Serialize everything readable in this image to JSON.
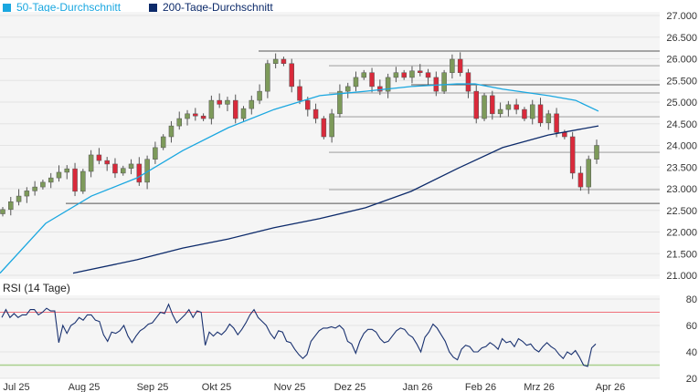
{
  "chart_data": {
    "type": "candlestick",
    "legend": [
      {
        "label": "50-Tage-Durchschnitt",
        "color": "#1aa7e0"
      },
      {
        "label": "200-Tage-Durchschnitt",
        "color": "#0c2a6a"
      }
    ],
    "y_ticks": [
      "27.000",
      "26.500",
      "26.000",
      "25.500",
      "25.000",
      "24.500",
      "24.000",
      "23.500",
      "23.000",
      "22.500",
      "22.000",
      "21.500",
      "21.000"
    ],
    "ylim": [
      21000,
      27000
    ],
    "x_ticks": [
      "Jul 25",
      "Aug 25",
      "Sep 25",
      "Okt 25",
      "Nov 25",
      "Dez 25",
      "Jan 26",
      "Feb 26",
      "Mrz 26",
      "Apr 26"
    ],
    "closes": [
      22520,
      22700,
      22830,
      22950,
      23040,
      23150,
      23250,
      23380,
      23460,
      22940,
      23400,
      23780,
      23650,
      23570,
      23360,
      23470,
      23570,
      23150,
      23680,
      23950,
      24200,
      24450,
      24620,
      24730,
      24680,
      24620,
      25040,
      24950,
      25040,
      24620,
      24850,
      25040,
      25250,
      25890,
      25990,
      25890,
      25360,
      25040,
      24830,
      24620,
      24200,
      24730,
      25250,
      25360,
      25570,
      25680,
      25360,
      25250,
      25570,
      25680,
      25570,
      25720,
      25680,
      25570,
      25250,
      25680,
      25990,
      25680,
      25250,
      24620,
      25150,
      24730,
      24830,
      24940,
      24830,
      24620,
      24940,
      24520,
      24730,
      24300,
      24200,
      23360,
      23040,
      23680,
      24000
    ],
    "ma50": [
      [
        0,
        21050
      ],
      [
        50,
        22200
      ],
      [
        100,
        22830
      ],
      [
        150,
        23250
      ],
      [
        200,
        23880
      ],
      [
        250,
        24410
      ],
      [
        300,
        24830
      ],
      [
        350,
        25150
      ],
      [
        400,
        25250
      ],
      [
        450,
        25360
      ],
      [
        500,
        25420
      ],
      [
        520,
        25420
      ],
      [
        550,
        25300
      ],
      [
        600,
        25150
      ],
      [
        630,
        25040
      ],
      [
        655,
        24790
      ]
    ],
    "ma200": [
      [
        80,
        21050
      ],
      [
        150,
        21360
      ],
      [
        200,
        21630
      ],
      [
        250,
        21840
      ],
      [
        300,
        22100
      ],
      [
        350,
        22310
      ],
      [
        400,
        22560
      ],
      [
        450,
        22940
      ],
      [
        500,
        23460
      ],
      [
        550,
        23950
      ],
      [
        600,
        24240
      ],
      [
        655,
        24450
      ]
    ],
    "levels_major": [
      26180,
      25400,
      22660
    ],
    "levels_minor": [
      25840,
      25210,
      24660,
      23840,
      22980
    ],
    "rsi": {
      "title": "RSI (14 Tage)",
      "y_ticks": [
        "80",
        "60",
        "40",
        "20"
      ],
      "ylim": [
        20,
        80
      ],
      "overbought": 70,
      "oversold": 30,
      "values": [
        66,
        72,
        66,
        69,
        66,
        68,
        68,
        72,
        72,
        68,
        70,
        73,
        71,
        71,
        47,
        60,
        54,
        60,
        62,
        66,
        64,
        68,
        68,
        64,
        63,
        53,
        48,
        55,
        54,
        56,
        60,
        52,
        47,
        52,
        56,
        58,
        61,
        62,
        66,
        70,
        69,
        76,
        68,
        62,
        65,
        68,
        72,
        66,
        71,
        70,
        45,
        55,
        52,
        55,
        53,
        56,
        61,
        58,
        53,
        57,
        62,
        68,
        72,
        66,
        63,
        60,
        54,
        50,
        56,
        55,
        48,
        47,
        42,
        38,
        35,
        38,
        48,
        52,
        56,
        58,
        58,
        59,
        58,
        60,
        57,
        48,
        46,
        39,
        48,
        54,
        57,
        57,
        55,
        50,
        47,
        48,
        52,
        56,
        58,
        57,
        53,
        51,
        46,
        40,
        51,
        55,
        61,
        58,
        53,
        48,
        40,
        36,
        34,
        42,
        45,
        44,
        40,
        40,
        43,
        44,
        47,
        45,
        42,
        50,
        47,
        48,
        44,
        50,
        48,
        45,
        46,
        42,
        40,
        44,
        47,
        44,
        42,
        38,
        35,
        40,
        38,
        41,
        36,
        30,
        29,
        43,
        46
      ]
    }
  }
}
